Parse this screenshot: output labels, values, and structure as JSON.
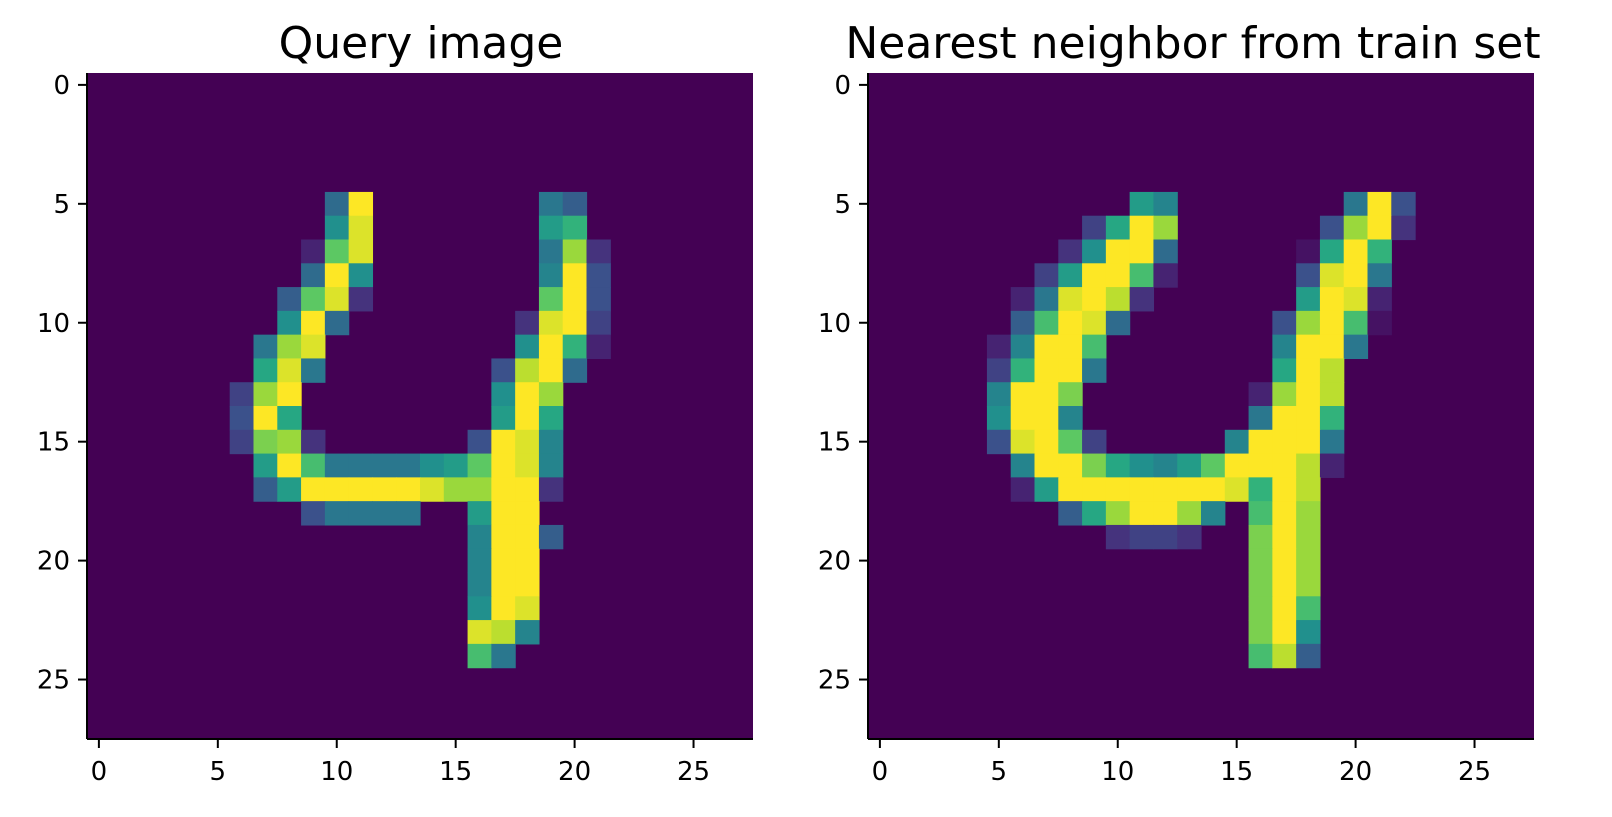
{
  "chart_data": [
    {
      "type": "heatmap",
      "title": "Query image",
      "xlabel": "",
      "ylabel": "",
      "xlim": [
        -0.5,
        27.5
      ],
      "ylim": [
        27.5,
        -0.5
      ],
      "xticks": [
        0,
        5,
        10,
        15,
        20,
        25
      ],
      "yticks": [
        0,
        5,
        10,
        15,
        20,
        25
      ],
      "colormap": "viridis",
      "background_value": 0,
      "grid": false,
      "pixels": [
        [
          5,
          10,
          0.35
        ],
        [
          5,
          11,
          1.0
        ],
        [
          5,
          19,
          0.4
        ],
        [
          5,
          20,
          0.3
        ],
        [
          6,
          10,
          0.5
        ],
        [
          6,
          11,
          0.95
        ],
        [
          6,
          19,
          0.55
        ],
        [
          6,
          20,
          0.65
        ],
        [
          7,
          9,
          0.1
        ],
        [
          7,
          10,
          0.75
        ],
        [
          7,
          11,
          0.95
        ],
        [
          7,
          19,
          0.4
        ],
        [
          7,
          20,
          0.85
        ],
        [
          7,
          21,
          0.15
        ],
        [
          8,
          9,
          0.35
        ],
        [
          8,
          10,
          1.0
        ],
        [
          8,
          11,
          0.5
        ],
        [
          8,
          19,
          0.45
        ],
        [
          8,
          20,
          1.0
        ],
        [
          8,
          21,
          0.25
        ],
        [
          9,
          8,
          0.3
        ],
        [
          9,
          9,
          0.75
        ],
        [
          9,
          10,
          0.95
        ],
        [
          9,
          11,
          0.15
        ],
        [
          9,
          19,
          0.75
        ],
        [
          9,
          20,
          1.0
        ],
        [
          9,
          21,
          0.25
        ],
        [
          10,
          8,
          0.5
        ],
        [
          10,
          9,
          1.0
        ],
        [
          10,
          10,
          0.35
        ],
        [
          10,
          18,
          0.15
        ],
        [
          10,
          19,
          0.95
        ],
        [
          10,
          20,
          1.0
        ],
        [
          10,
          21,
          0.2
        ],
        [
          11,
          7,
          0.4
        ],
        [
          11,
          8,
          0.85
        ],
        [
          11,
          9,
          0.95
        ],
        [
          11,
          18,
          0.5
        ],
        [
          11,
          19,
          1.0
        ],
        [
          11,
          20,
          0.65
        ],
        [
          11,
          21,
          0.1
        ],
        [
          12,
          7,
          0.6
        ],
        [
          12,
          8,
          0.95
        ],
        [
          12,
          9,
          0.4
        ],
        [
          12,
          17,
          0.25
        ],
        [
          12,
          18,
          0.9
        ],
        [
          12,
          19,
          1.0
        ],
        [
          12,
          20,
          0.35
        ],
        [
          13,
          6,
          0.2
        ],
        [
          13,
          7,
          0.85
        ],
        [
          13,
          8,
          1.0
        ],
        [
          13,
          17,
          0.5
        ],
        [
          13,
          18,
          1.0
        ],
        [
          13,
          19,
          0.85
        ],
        [
          14,
          6,
          0.25
        ],
        [
          14,
          7,
          1.0
        ],
        [
          14,
          8,
          0.6
        ],
        [
          14,
          17,
          0.55
        ],
        [
          14,
          18,
          1.0
        ],
        [
          14,
          19,
          0.6
        ],
        [
          15,
          6,
          0.2
        ],
        [
          15,
          7,
          0.8
        ],
        [
          15,
          8,
          0.85
        ],
        [
          15,
          9,
          0.15
        ],
        [
          15,
          16,
          0.25
        ],
        [
          15,
          17,
          1.0
        ],
        [
          15,
          18,
          0.95
        ],
        [
          15,
          19,
          0.45
        ],
        [
          16,
          7,
          0.55
        ],
        [
          16,
          8,
          1.0
        ],
        [
          16,
          9,
          0.7
        ],
        [
          16,
          10,
          0.4
        ],
        [
          16,
          11,
          0.4
        ],
        [
          16,
          12,
          0.4
        ],
        [
          16,
          13,
          0.4
        ],
        [
          16,
          14,
          0.5
        ],
        [
          16,
          15,
          0.55
        ],
        [
          16,
          16,
          0.75
        ],
        [
          16,
          17,
          1.0
        ],
        [
          16,
          18,
          0.95
        ],
        [
          16,
          19,
          0.45
        ],
        [
          17,
          7,
          0.3
        ],
        [
          17,
          8,
          0.55
        ],
        [
          17,
          9,
          1.0
        ],
        [
          17,
          10,
          1.0
        ],
        [
          17,
          11,
          1.0
        ],
        [
          17,
          12,
          1.0
        ],
        [
          17,
          13,
          1.0
        ],
        [
          17,
          14,
          0.95
        ],
        [
          17,
          15,
          0.85
        ],
        [
          17,
          16,
          0.85
        ],
        [
          17,
          17,
          1.0
        ],
        [
          17,
          18,
          1.0
        ],
        [
          17,
          19,
          0.15
        ],
        [
          18,
          9,
          0.25
        ],
        [
          18,
          10,
          0.4
        ],
        [
          18,
          11,
          0.4
        ],
        [
          18,
          12,
          0.4
        ],
        [
          18,
          13,
          0.4
        ],
        [
          18,
          16,
          0.55
        ],
        [
          18,
          17,
          1.0
        ],
        [
          18,
          18,
          1.0
        ],
        [
          19,
          16,
          0.45
        ],
        [
          19,
          17,
          1.0
        ],
        [
          19,
          18,
          1.0
        ],
        [
          19,
          19,
          0.3
        ],
        [
          20,
          16,
          0.45
        ],
        [
          20,
          17,
          1.0
        ],
        [
          20,
          18,
          1.0
        ],
        [
          21,
          16,
          0.45
        ],
        [
          21,
          17,
          1.0
        ],
        [
          21,
          18,
          1.0
        ],
        [
          22,
          16,
          0.5
        ],
        [
          22,
          17,
          1.0
        ],
        [
          22,
          18,
          0.95
        ],
        [
          23,
          16,
          0.95
        ],
        [
          23,
          17,
          0.9
        ],
        [
          23,
          18,
          0.45
        ],
        [
          24,
          16,
          0.7
        ],
        [
          24,
          17,
          0.4
        ]
      ]
    },
    {
      "type": "heatmap",
      "title": "Nearest neighbor from train set",
      "xlabel": "",
      "ylabel": "",
      "xlim": [
        -0.5,
        27.5
      ],
      "ylim": [
        27.5,
        -0.5
      ],
      "xticks": [
        0,
        5,
        10,
        15,
        20,
        25
      ],
      "yticks": [
        0,
        5,
        10,
        15,
        20,
        25
      ],
      "colormap": "viridis",
      "background_value": 0,
      "grid": false,
      "pixels": [
        [
          5,
          11,
          0.55
        ],
        [
          5,
          12,
          0.45
        ],
        [
          5,
          20,
          0.4
        ],
        [
          5,
          21,
          1.0
        ],
        [
          5,
          22,
          0.25
        ],
        [
          6,
          9,
          0.2
        ],
        [
          6,
          10,
          0.6
        ],
        [
          6,
          11,
          1.0
        ],
        [
          6,
          12,
          0.85
        ],
        [
          6,
          19,
          0.25
        ],
        [
          6,
          20,
          0.85
        ],
        [
          6,
          21,
          1.0
        ],
        [
          6,
          22,
          0.15
        ],
        [
          7,
          8,
          0.15
        ],
        [
          7,
          9,
          0.5
        ],
        [
          7,
          10,
          1.0
        ],
        [
          7,
          11,
          1.0
        ],
        [
          7,
          12,
          0.35
        ],
        [
          7,
          18,
          0.05
        ],
        [
          7,
          19,
          0.6
        ],
        [
          7,
          20,
          1.0
        ],
        [
          7,
          21,
          0.65
        ],
        [
          8,
          7,
          0.2
        ],
        [
          8,
          8,
          0.55
        ],
        [
          8,
          9,
          1.0
        ],
        [
          8,
          10,
          1.0
        ],
        [
          8,
          11,
          0.7
        ],
        [
          8,
          12,
          0.1
        ],
        [
          8,
          18,
          0.25
        ],
        [
          8,
          19,
          0.95
        ],
        [
          8,
          20,
          1.0
        ],
        [
          8,
          21,
          0.4
        ],
        [
          9,
          6,
          0.1
        ],
        [
          9,
          7,
          0.4
        ],
        [
          9,
          8,
          0.95
        ],
        [
          9,
          9,
          1.0
        ],
        [
          9,
          10,
          0.9
        ],
        [
          9,
          11,
          0.15
        ],
        [
          9,
          18,
          0.55
        ],
        [
          9,
          19,
          1.0
        ],
        [
          9,
          20,
          0.95
        ],
        [
          9,
          21,
          0.1
        ],
        [
          10,
          6,
          0.3
        ],
        [
          10,
          7,
          0.7
        ],
        [
          10,
          8,
          1.0
        ],
        [
          10,
          9,
          0.95
        ],
        [
          10,
          10,
          0.35
        ],
        [
          10,
          17,
          0.25
        ],
        [
          10,
          18,
          0.85
        ],
        [
          10,
          19,
          1.0
        ],
        [
          10,
          20,
          0.7
        ],
        [
          10,
          21,
          0.05
        ],
        [
          11,
          5,
          0.1
        ],
        [
          11,
          6,
          0.45
        ],
        [
          11,
          7,
          1.0
        ],
        [
          11,
          8,
          1.0
        ],
        [
          11,
          9,
          0.7
        ],
        [
          11,
          17,
          0.45
        ],
        [
          11,
          18,
          1.0
        ],
        [
          11,
          19,
          1.0
        ],
        [
          11,
          20,
          0.4
        ],
        [
          12,
          5,
          0.2
        ],
        [
          12,
          6,
          0.65
        ],
        [
          12,
          7,
          1.0
        ],
        [
          12,
          8,
          1.0
        ],
        [
          12,
          9,
          0.4
        ],
        [
          12,
          17,
          0.6
        ],
        [
          12,
          18,
          1.0
        ],
        [
          12,
          19,
          0.9
        ],
        [
          13,
          5,
          0.45
        ],
        [
          13,
          6,
          1.0
        ],
        [
          13,
          7,
          1.0
        ],
        [
          13,
          8,
          0.8
        ],
        [
          13,
          16,
          0.1
        ],
        [
          13,
          17,
          0.85
        ],
        [
          13,
          18,
          1.0
        ],
        [
          13,
          19,
          0.9
        ],
        [
          14,
          5,
          0.5
        ],
        [
          14,
          6,
          1.0
        ],
        [
          14,
          7,
          1.0
        ],
        [
          14,
          8,
          0.45
        ],
        [
          14,
          16,
          0.4
        ],
        [
          14,
          17,
          1.0
        ],
        [
          14,
          18,
          1.0
        ],
        [
          14,
          19,
          0.65
        ],
        [
          15,
          5,
          0.25
        ],
        [
          15,
          6,
          0.95
        ],
        [
          15,
          7,
          1.0
        ],
        [
          15,
          8,
          0.75
        ],
        [
          15,
          9,
          0.2
        ],
        [
          15,
          15,
          0.45
        ],
        [
          15,
          16,
          1.0
        ],
        [
          15,
          17,
          1.0
        ],
        [
          15,
          18,
          1.0
        ],
        [
          15,
          19,
          0.4
        ],
        [
          16,
          6,
          0.45
        ],
        [
          16,
          7,
          1.0
        ],
        [
          16,
          8,
          1.0
        ],
        [
          16,
          9,
          0.8
        ],
        [
          16,
          10,
          0.6
        ],
        [
          16,
          11,
          0.5
        ],
        [
          16,
          12,
          0.45
        ],
        [
          16,
          13,
          0.55
        ],
        [
          16,
          14,
          0.75
        ],
        [
          16,
          15,
          1.0
        ],
        [
          16,
          16,
          1.0
        ],
        [
          16,
          17,
          1.0
        ],
        [
          16,
          18,
          0.9
        ],
        [
          16,
          19,
          0.1
        ],
        [
          17,
          6,
          0.1
        ],
        [
          17,
          7,
          0.55
        ],
        [
          17,
          8,
          1.0
        ],
        [
          17,
          9,
          1.0
        ],
        [
          17,
          10,
          1.0
        ],
        [
          17,
          11,
          1.0
        ],
        [
          17,
          12,
          1.0
        ],
        [
          17,
          13,
          1.0
        ],
        [
          17,
          14,
          1.0
        ],
        [
          17,
          15,
          0.95
        ],
        [
          17,
          16,
          0.65
        ],
        [
          17,
          17,
          1.0
        ],
        [
          17,
          18,
          0.9
        ],
        [
          18,
          8,
          0.3
        ],
        [
          18,
          9,
          0.6
        ],
        [
          18,
          10,
          0.85
        ],
        [
          18,
          11,
          1.0
        ],
        [
          18,
          12,
          1.0
        ],
        [
          18,
          13,
          0.85
        ],
        [
          18,
          14,
          0.45
        ],
        [
          18,
          16,
          0.7
        ],
        [
          18,
          17,
          1.0
        ],
        [
          18,
          18,
          0.85
        ],
        [
          19,
          10,
          0.15
        ],
        [
          19,
          11,
          0.2
        ],
        [
          19,
          12,
          0.2
        ],
        [
          19,
          13,
          0.15
        ],
        [
          19,
          16,
          0.8
        ],
        [
          19,
          17,
          1.0
        ],
        [
          19,
          18,
          0.85
        ],
        [
          20,
          16,
          0.8
        ],
        [
          20,
          17,
          1.0
        ],
        [
          20,
          18,
          0.85
        ],
        [
          21,
          16,
          0.8
        ],
        [
          21,
          17,
          1.0
        ],
        [
          21,
          18,
          0.85
        ],
        [
          22,
          16,
          0.8
        ],
        [
          22,
          17,
          1.0
        ],
        [
          22,
          18,
          0.7
        ],
        [
          23,
          16,
          0.8
        ],
        [
          23,
          17,
          1.0
        ],
        [
          23,
          18,
          0.5
        ],
        [
          24,
          16,
          0.7
        ],
        [
          24,
          17,
          0.9
        ],
        [
          24,
          18,
          0.3
        ]
      ]
    }
  ]
}
